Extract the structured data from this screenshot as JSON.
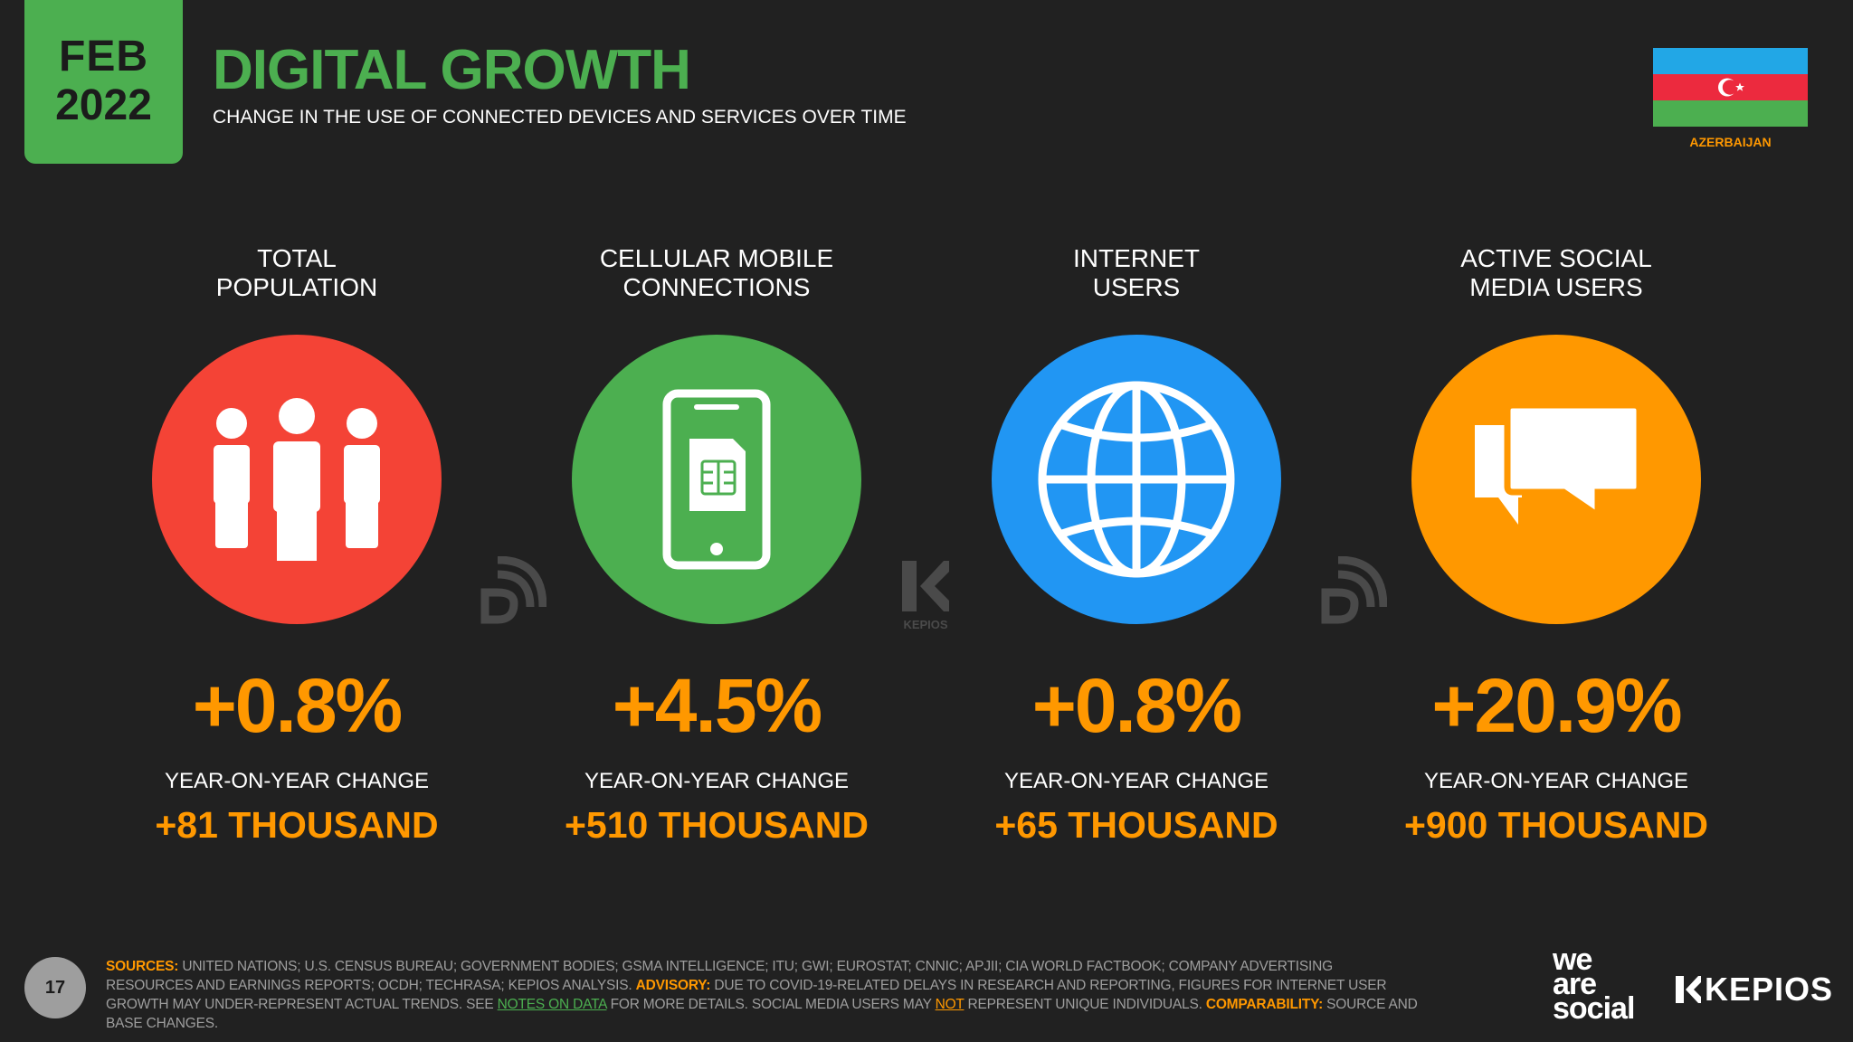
{
  "header": {
    "month": "FEB",
    "year": "2022",
    "title": "DIGITAL GROWTH",
    "subtitle": "CHANGE IN THE USE OF CONNECTED DEVICES AND SERVICES OVER TIME",
    "country": "AZERBAIJAN",
    "flag_colors": [
      "#22a7e6",
      "#ec2a3e",
      "#4caf50"
    ]
  },
  "stats": [
    {
      "label_line1": "TOTAL",
      "label_line2": "POPULATION",
      "icon": "people-icon",
      "color": "#f44336",
      "percent": "+0.8%",
      "yoy_label": "YEAR-ON-YEAR CHANGE",
      "absolute": "+81 THOUSAND"
    },
    {
      "label_line1": "CELLULAR MOBILE",
      "label_line2": "CONNECTIONS",
      "icon": "mobile-sim-icon",
      "color": "#4caf50",
      "percent": "+4.5%",
      "yoy_label": "YEAR-ON-YEAR CHANGE",
      "absolute": "+510 THOUSAND"
    },
    {
      "label_line1": "INTERNET",
      "label_line2": "USERS",
      "icon": "globe-icon",
      "color": "#2196f3",
      "percent": "+0.8%",
      "yoy_label": "YEAR-ON-YEAR CHANGE",
      "absolute": "+65 THOUSAND"
    },
    {
      "label_line1": "ACTIVE SOCIAL",
      "label_line2": "MEDIA USERS",
      "icon": "speech-bubbles-icon",
      "color": "#ff9800",
      "percent": "+20.9%",
      "yoy_label": "YEAR-ON-YEAR CHANGE",
      "absolute": "+900 THOUSAND"
    }
  ],
  "watermark": {
    "kepios_text": "KEPIOS"
  },
  "footer": {
    "page_number": "17",
    "sources_label": "SOURCES:",
    "sources_text": " UNITED NATIONS; U.S. CENSUS BUREAU; GOVERNMENT BODIES; GSMA INTELLIGENCE; ITU; GWI; EUROSTAT; CNNIC; APJII; CIA WORLD FACTBOOK; COMPANY ADVERTISING RESOURCES AND EARNINGS REPORTS; OCDH; TECHRASA; KEPIOS ANALYSIS. ",
    "advisory_label": "ADVISORY:",
    "advisory_text": " DUE TO COVID-19-RELATED DELAYS IN RESEARCH AND REPORTING, FIGURES FOR INTERNET USER GROWTH MAY UNDER-REPRESENT ACTUAL TRENDS. SEE ",
    "notes_link": "NOTES ON DATA",
    "advisory_text2": " FOR MORE DETAILS. SOCIAL MEDIA USERS MAY ",
    "not_text": "NOT",
    "advisory_text3": " REPRESENT UNIQUE INDIVIDUALS. ",
    "comparability_label": "COMPARABILITY:",
    "comparability_text": " SOURCE AND BASE CHANGES.",
    "was_line1": "we",
    "was_line2": "are",
    "was_line3": "social",
    "kepios_logo": "KEPIOS"
  }
}
